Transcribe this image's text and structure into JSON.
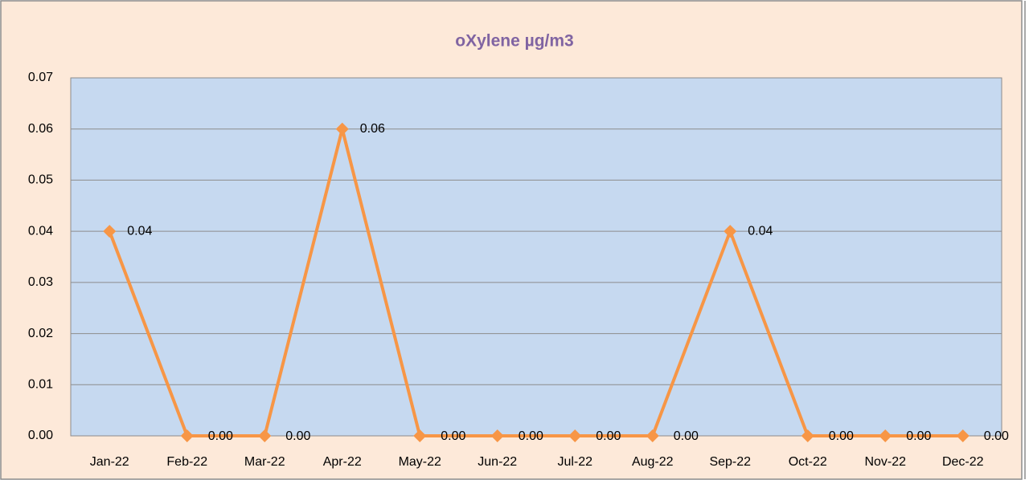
{
  "chart_data": {
    "type": "line",
    "title": "oXylene µg/m3",
    "categories": [
      "Jan-22",
      "Feb-22",
      "Mar-22",
      "Apr-22",
      "May-22",
      "Jun-22",
      "Jul-22",
      "Aug-22",
      "Sep-22",
      "Oct-22",
      "Nov-22",
      "Dec-22"
    ],
    "values": [
      0.04,
      0,
      0,
      0.06,
      0,
      0,
      0,
      0,
      0.04,
      0,
      0,
      0
    ],
    "value_labels": [
      "0.04",
      "0.00",
      "0.00",
      "0.06",
      "0.00",
      "0.00",
      "0.00",
      "0.00",
      "0.04",
      "0.00",
      "0.00",
      "0.00"
    ],
    "color": "#f79646",
    "ylim": [
      0,
      0.07
    ],
    "yticks": [
      {
        "value": 0,
        "label": "0.00"
      },
      0.01,
      0.02,
      0.03,
      0.04,
      0.05,
      0.06,
      0.07
    ],
    "grid": true
  }
}
